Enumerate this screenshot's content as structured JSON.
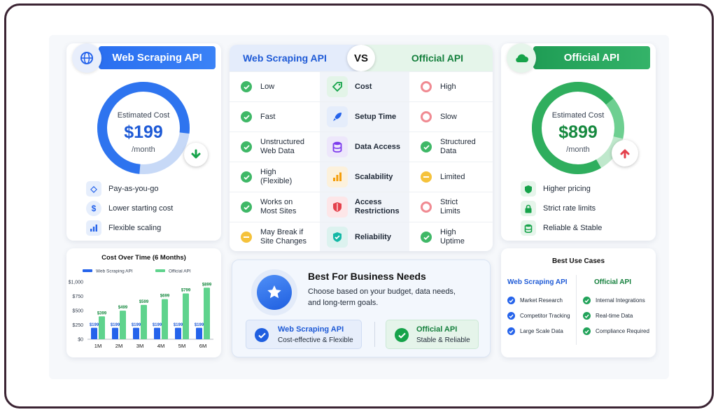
{
  "left_card": {
    "title": "Web Scraping API",
    "cost_label": "Estimated Cost",
    "cost_value": "$199",
    "cost_period": "/month",
    "features": [
      {
        "icon": "tag-icon",
        "label": "Pay-as-you-go"
      },
      {
        "icon": "dollar-icon",
        "label": "Lower starting cost"
      },
      {
        "icon": "bar-chart-icon",
        "label": "Flexible scaling"
      }
    ]
  },
  "right_card": {
    "title": "Official API",
    "cost_label": "Estimated Cost",
    "cost_value": "$899",
    "cost_period": "/month",
    "features": [
      {
        "icon": "shield-icon",
        "label": "Higher pricing"
      },
      {
        "icon": "lock-icon",
        "label": "Strict rate limits"
      },
      {
        "icon": "database-icon",
        "label": "Reliable & Stable"
      }
    ]
  },
  "comparison": {
    "left_header": "Web Scraping API",
    "vs": "VS",
    "right_header": "Official API",
    "rows": [
      {
        "left": "Low",
        "left_status": "good",
        "category": "Cost",
        "category_icon": "tag-icon",
        "right": "High",
        "right_status": "bad"
      },
      {
        "left": "Fast",
        "left_status": "good",
        "category": "Setup Time",
        "category_icon": "rocket-icon",
        "right": "Slow",
        "right_status": "bad"
      },
      {
        "left": "Unstructured\nWeb Data",
        "left_status": "good",
        "category": "Data Access",
        "category_icon": "database-icon",
        "right": "Structured\nData",
        "right_status": "good"
      },
      {
        "left": "High\n(Flexible)",
        "left_status": "good",
        "category": "Scalability",
        "category_icon": "bar-chart-icon",
        "right": "Limited",
        "right_status": "neutral"
      },
      {
        "left": "Works on\nMost Sites",
        "left_status": "good",
        "category": "Access\nRestrictions",
        "category_icon": "shield-icon",
        "right": "Strict\nLimits",
        "right_status": "bad"
      },
      {
        "left": "May Break if\nSite Changes",
        "left_status": "neutral",
        "category": "Reliability",
        "category_icon": "shield-check-icon",
        "right": "High\nUptime",
        "right_status": "good"
      }
    ]
  },
  "best_for": {
    "title": "Best For Business Needs",
    "description": "Choose based on your budget, data needs, and long-term goals.",
    "options": [
      {
        "title": "Web Scraping API",
        "subtitle": "Cost-effective & Flexible"
      },
      {
        "title": "Official API",
        "subtitle": "Stable & Reliable"
      }
    ]
  },
  "use_cases": {
    "title": "Best Use Cases",
    "left_title": "Web Scraping API",
    "left_items": [
      "Market Research",
      "Competitor Tracking",
      "Large Scale Data"
    ],
    "right_title": "Official API",
    "right_items": [
      "Internal Integrations",
      "Real-time Data",
      "Compliance Required"
    ]
  },
  "colors": {
    "blue": "#2563eb",
    "green": "#22a35a",
    "red": "#e4424d",
    "yellow": "#f5b82e"
  },
  "chart_data": {
    "type": "bar",
    "title": "Cost Over Time (6 Months)",
    "categories": [
      "1M",
      "2M",
      "3M",
      "4M",
      "5M",
      "6M"
    ],
    "series": [
      {
        "name": "Web Scraping API",
        "values": [
          199,
          199,
          199,
          199,
          199,
          199
        ],
        "labels": [
          "$199",
          "$199",
          "$199",
          "$199",
          "$199",
          "$199"
        ],
        "color": "#2563eb"
      },
      {
        "name": "Official API",
        "values": [
          399,
          499,
          599,
          699,
          799,
          899
        ],
        "labels": [
          "$399",
          "$499",
          "$599",
          "$699",
          "$799",
          "$899"
        ],
        "color": "#5fd38d"
      }
    ],
    "yticks": [
      "$0",
      "$250",
      "$500",
      "$750",
      "$1,000"
    ],
    "ylim": [
      0,
      1000
    ],
    "legend": "top",
    "grid": false
  }
}
